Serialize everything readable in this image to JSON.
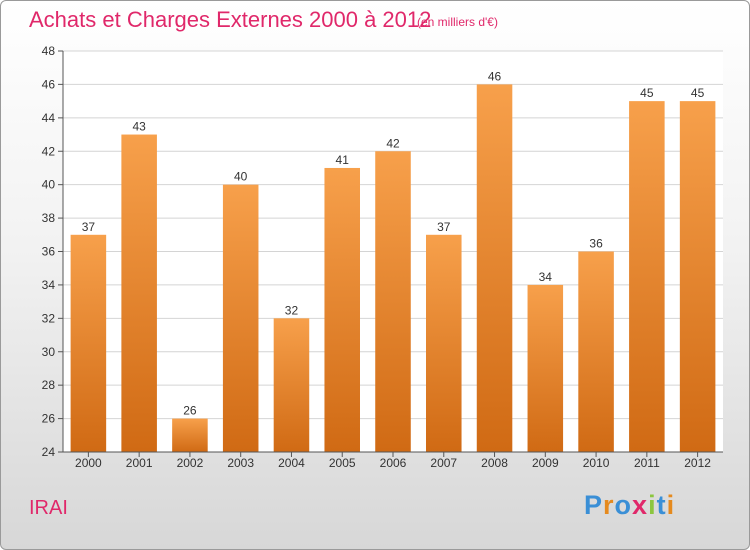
{
  "title": "Achats et Charges Externes 2000 à 2012",
  "unit_note": "(en milliers d'€)",
  "commune": "IRAI",
  "logo": {
    "text": "Proxiti",
    "letters": [
      {
        "ch": "P",
        "color": "#3a8fd6"
      },
      {
        "ch": "r",
        "color": "#e58a1e"
      },
      {
        "ch": "o",
        "color": "#3a8fd6"
      },
      {
        "ch": "x",
        "color": "#e0286a"
      },
      {
        "ch": "i",
        "color": "#8cc63f"
      },
      {
        "ch": "t",
        "color": "#3a8fd6"
      },
      {
        "ch": "i",
        "color": "#e58a1e"
      }
    ]
  },
  "chart_data": {
    "type": "bar",
    "categories": [
      "2000",
      "2001",
      "2002",
      "2003",
      "2004",
      "2005",
      "2006",
      "2007",
      "2008",
      "2009",
      "2010",
      "2011",
      "2012"
    ],
    "values": [
      37,
      43,
      26,
      40,
      32,
      41,
      42,
      37,
      46,
      34,
      36,
      45,
      45
    ],
    "ylim": [
      24,
      48
    ],
    "yticks": [
      24,
      26,
      28,
      30,
      32,
      34,
      36,
      38,
      40,
      42,
      44,
      46,
      48
    ],
    "grid": true,
    "bar_color_top": "#f7a04b",
    "bar_color_bottom": "#d06a14"
  }
}
